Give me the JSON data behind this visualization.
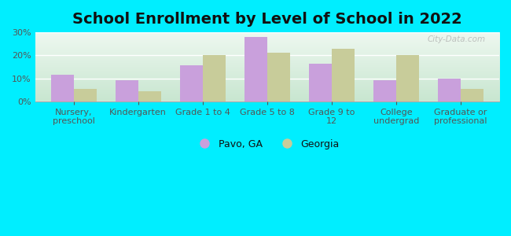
{
  "title": "School Enrollment by Level of School in 2022",
  "categories": [
    "Nursery,\npreschool",
    "Kindergarten",
    "Grade 1 to 4",
    "Grade 5 to 8",
    "Grade 9 to\n12",
    "College\nundergrad",
    "Graduate or\nprofessional"
  ],
  "pavo_values": [
    11.5,
    9.0,
    15.5,
    28.0,
    16.5,
    9.0,
    10.0
  ],
  "georgia_values": [
    5.5,
    4.5,
    20.0,
    21.0,
    23.0,
    20.0,
    5.5
  ],
  "pavo_color": "#c9a0dc",
  "georgia_color": "#c8cc9a",
  "background_outer": "#00eeff",
  "ylim": [
    0,
    30
  ],
  "yticks": [
    0,
    10,
    20,
    30
  ],
  "ytick_labels": [
    "0%",
    "10%",
    "20%",
    "30%"
  ],
  "legend_labels": [
    "Pavo, GA",
    "Georgia"
  ],
  "bar_width": 0.35,
  "title_fontsize": 14,
  "tick_fontsize": 8,
  "legend_fontsize": 9,
  "watermark": "City-Data.com",
  "bg_top_color": "#eef8f0",
  "bg_bottom_color": "#d0ecd8"
}
